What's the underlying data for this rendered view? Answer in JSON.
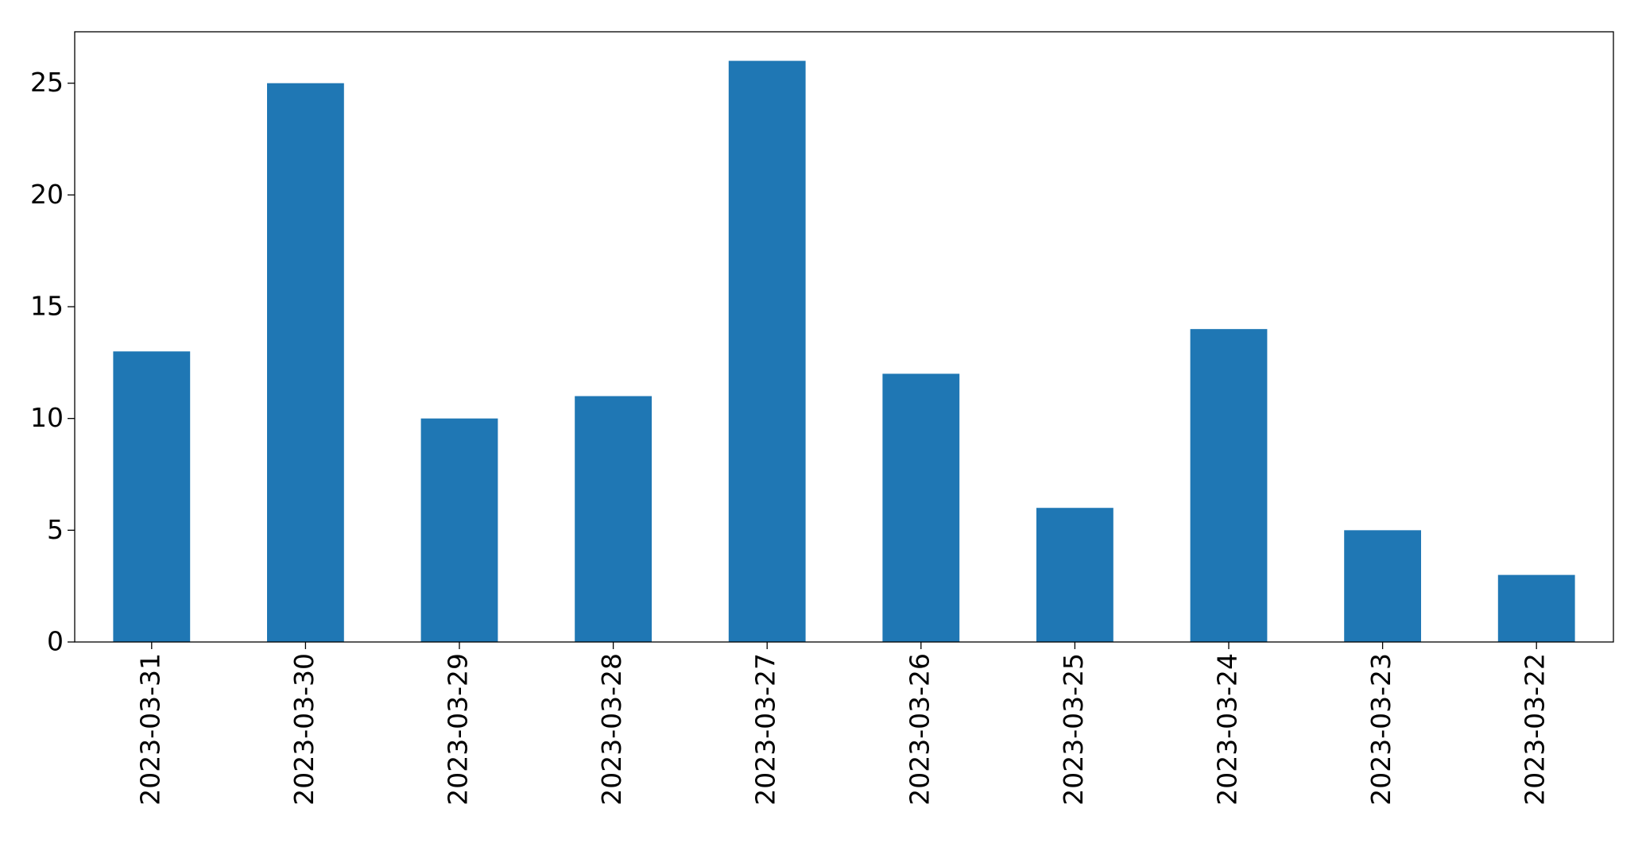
{
  "chart_data": {
    "type": "bar",
    "categories": [
      "2023-03-31",
      "2023-03-30",
      "2023-03-29",
      "2023-03-28",
      "2023-03-27",
      "2023-03-26",
      "2023-03-25",
      "2023-03-24",
      "2023-03-23",
      "2023-03-22"
    ],
    "values": [
      13,
      25,
      10,
      11,
      26,
      12,
      6,
      14,
      5,
      3
    ],
    "color": "#1f77b4",
    "ylim": [
      0,
      27.3
    ],
    "yticks": [
      0,
      5,
      10,
      15,
      20,
      25
    ],
    "grid": false
  }
}
